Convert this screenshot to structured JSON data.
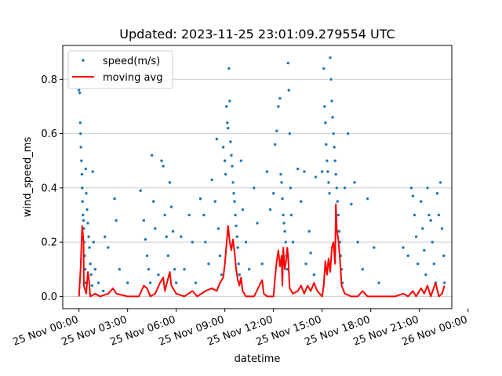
{
  "chart_data": {
    "type": "scatter",
    "title": "Updated: 2023-11-25 23:01:09.279554 UTC",
    "xlabel": "datetime",
    "ylabel": "wind_speed_ms",
    "x_unit": "hours since 25 Nov 00:00",
    "xlim": [
      -1.0,
      23.0
    ],
    "ylim": [
      -0.045,
      0.925
    ],
    "x_ticks": [
      {
        "value": 0,
        "label": "25 Nov 00:00"
      },
      {
        "value": 3,
        "label": "25 Nov 03:00"
      },
      {
        "value": 6,
        "label": "25 Nov 06:00"
      },
      {
        "value": 9,
        "label": "25 Nov 09:00"
      },
      {
        "value": 12,
        "label": "25 Nov 12:00"
      },
      {
        "value": 15,
        "label": "25 Nov 15:00"
      },
      {
        "value": 18,
        "label": "25 Nov 18:00"
      },
      {
        "value": 21,
        "label": "25 Nov 21:00"
      },
      {
        "value": 24,
        "label": "26 Nov 00:00"
      }
    ],
    "y_ticks": [
      {
        "value": 0.0,
        "label": "0.0"
      },
      {
        "value": 0.2,
        "label": "0.2"
      },
      {
        "value": 0.4,
        "label": "0.4"
      },
      {
        "value": 0.6,
        "label": "0.6"
      },
      {
        "value": 0.8,
        "label": "0.8"
      }
    ],
    "grid": "horizontal",
    "legend": {
      "placement": "top-left",
      "entries": [
        {
          "label": "speed(m/s)",
          "marker": "point",
          "color": "#1f77b4"
        },
        {
          "label": "moving avg",
          "marker": "line",
          "color": "#ff0000"
        }
      ]
    },
    "colors": {
      "scatter": "#1f77b4",
      "moving_avg": "#ff0000",
      "grid": "#cccccc"
    },
    "series": [
      {
        "name": "speed(m/s)",
        "kind": "scatter",
        "points": [
          [
            0.0,
            0.76
          ],
          [
            0.05,
            0.75
          ],
          [
            0.08,
            0.64
          ],
          [
            0.1,
            0.6
          ],
          [
            0.12,
            0.55
          ],
          [
            0.15,
            0.5
          ],
          [
            0.18,
            0.45
          ],
          [
            0.2,
            0.4
          ],
          [
            0.22,
            0.35
          ],
          [
            0.25,
            0.3
          ],
          [
            0.28,
            0.28
          ],
          [
            0.3,
            0.25
          ],
          [
            0.32,
            0.2
          ],
          [
            0.35,
            0.15
          ],
          [
            0.38,
            0.1
          ],
          [
            0.4,
            0.05
          ],
          [
            0.42,
            0.47
          ],
          [
            0.45,
            0.38
          ],
          [
            0.5,
            0.32
          ],
          [
            0.55,
            0.27
          ],
          [
            0.6,
            0.22
          ],
          [
            0.65,
            0.18
          ],
          [
            0.7,
            0.12
          ],
          [
            0.75,
            0.08
          ],
          [
            0.8,
            0.04
          ],
          [
            0.85,
            0.46
          ],
          [
            0.9,
            0.2
          ],
          [
            1.0,
            0.1
          ],
          [
            1.2,
            0.05
          ],
          [
            1.5,
            0.02
          ],
          [
            1.6,
            0.22
          ],
          [
            1.8,
            0.18
          ],
          [
            2.2,
            0.36
          ],
          [
            2.3,
            0.28
          ],
          [
            2.5,
            0.1
          ],
          [
            3.0,
            0.05
          ],
          [
            3.8,
            0.39
          ],
          [
            4.0,
            0.28
          ],
          [
            4.1,
            0.21
          ],
          [
            4.2,
            0.15
          ],
          [
            4.3,
            0.1
          ],
          [
            4.4,
            0.05
          ],
          [
            4.5,
            0.52
          ],
          [
            4.6,
            0.35
          ],
          [
            4.7,
            0.25
          ],
          [
            4.9,
            0.08
          ],
          [
            5.1,
            0.5
          ],
          [
            5.2,
            0.48
          ],
          [
            5.3,
            0.3
          ],
          [
            5.4,
            0.22
          ],
          [
            5.5,
            0.15
          ],
          [
            5.6,
            0.42
          ],
          [
            5.7,
            0.33
          ],
          [
            5.8,
            0.24
          ],
          [
            5.9,
            0.1
          ],
          [
            6.0,
            0.05
          ],
          [
            6.3,
            0.22
          ],
          [
            6.5,
            0.1
          ],
          [
            6.8,
            0.3
          ],
          [
            7.0,
            0.2
          ],
          [
            7.2,
            0.05
          ],
          [
            7.5,
            0.36
          ],
          [
            7.7,
            0.3
          ],
          [
            7.8,
            0.2
          ],
          [
            8.0,
            0.12
          ],
          [
            8.2,
            0.43
          ],
          [
            8.4,
            0.35
          ],
          [
            8.5,
            0.58
          ],
          [
            8.6,
            0.25
          ],
          [
            8.7,
            0.15
          ],
          [
            8.8,
            0.08
          ],
          [
            8.9,
            0.55
          ],
          [
            9.0,
            0.5
          ],
          [
            9.05,
            0.45
          ],
          [
            9.1,
            0.7
          ],
          [
            9.15,
            0.64
          ],
          [
            9.2,
            0.62
          ],
          [
            9.25,
            0.84
          ],
          [
            9.3,
            0.72
          ],
          [
            9.35,
            0.57
          ],
          [
            9.4,
            0.52
          ],
          [
            9.45,
            0.48
          ],
          [
            9.5,
            0.42
          ],
          [
            9.55,
            0.38
          ],
          [
            9.6,
            0.35
          ],
          [
            9.65,
            0.3
          ],
          [
            9.7,
            0.26
          ],
          [
            9.75,
            0.22
          ],
          [
            9.8,
            0.18
          ],
          [
            9.85,
            0.12
          ],
          [
            9.9,
            0.08
          ],
          [
            10.0,
            0.5
          ],
          [
            10.1,
            0.32
          ],
          [
            10.3,
            0.2
          ],
          [
            10.5,
            0.1
          ],
          [
            10.8,
            0.4
          ],
          [
            11.0,
            0.27
          ],
          [
            11.3,
            0.12
          ],
          [
            11.6,
            0.46
          ],
          [
            11.8,
            0.32
          ],
          [
            12.0,
            0.38
          ],
          [
            12.1,
            0.56
          ],
          [
            12.2,
            0.61
          ],
          [
            12.3,
            0.7
          ],
          [
            12.4,
            0.73
          ],
          [
            12.45,
            0.45
          ],
          [
            12.5,
            0.42
          ],
          [
            12.55,
            0.36
          ],
          [
            12.6,
            0.3
          ],
          [
            12.65,
            0.27
          ],
          [
            12.7,
            0.24
          ],
          [
            12.75,
            0.2
          ],
          [
            12.8,
            0.15
          ],
          [
            12.85,
            0.1
          ],
          [
            12.9,
            0.86
          ],
          [
            12.95,
            0.76
          ],
          [
            13.0,
            0.6
          ],
          [
            13.05,
            0.4
          ],
          [
            13.1,
            0.3
          ],
          [
            13.2,
            0.2
          ],
          [
            13.5,
            0.47
          ],
          [
            13.7,
            0.35
          ],
          [
            13.9,
            0.46
          ],
          [
            14.0,
            0.12
          ],
          [
            14.2,
            0.24
          ],
          [
            14.3,
            0.16
          ],
          [
            14.5,
            0.08
          ],
          [
            14.6,
            0.44
          ],
          [
            15.0,
            0.46
          ],
          [
            15.1,
            0.84
          ],
          [
            15.15,
            0.7
          ],
          [
            15.2,
            0.64
          ],
          [
            15.25,
            0.56
          ],
          [
            15.3,
            0.5
          ],
          [
            15.35,
            0.46
          ],
          [
            15.4,
            0.42
          ],
          [
            15.45,
            0.38
          ],
          [
            15.5,
            0.88
          ],
          [
            15.55,
            0.8
          ],
          [
            15.6,
            0.72
          ],
          [
            15.65,
            0.66
          ],
          [
            15.7,
            0.6
          ],
          [
            15.75,
            0.55
          ],
          [
            15.8,
            0.5
          ],
          [
            15.85,
            0.45
          ],
          [
            15.9,
            0.4
          ],
          [
            15.95,
            0.35
          ],
          [
            16.0,
            0.3
          ],
          [
            16.05,
            0.24
          ],
          [
            16.1,
            0.2
          ],
          [
            16.15,
            0.15
          ],
          [
            16.2,
            0.1
          ],
          [
            16.25,
            0.05
          ],
          [
            16.4,
            0.4
          ],
          [
            16.6,
            0.6
          ],
          [
            16.8,
            0.34
          ],
          [
            17.0,
            0.42
          ],
          [
            17.2,
            0.2
          ],
          [
            17.5,
            0.1
          ],
          [
            17.8,
            0.36
          ],
          [
            18.2,
            0.18
          ],
          [
            18.5,
            0.05
          ],
          [
            20.0,
            0.18
          ],
          [
            20.3,
            0.15
          ],
          [
            20.5,
            0.4
          ],
          [
            20.6,
            0.37
          ],
          [
            20.7,
            0.3
          ],
          [
            20.8,
            0.22
          ],
          [
            20.9,
            0.12
          ],
          [
            21.1,
            0.35
          ],
          [
            21.2,
            0.25
          ],
          [
            21.3,
            0.17
          ],
          [
            21.4,
            0.08
          ],
          [
            21.5,
            0.4
          ],
          [
            21.6,
            0.3
          ],
          [
            21.7,
            0.28
          ],
          [
            21.8,
            0.2
          ],
          [
            21.9,
            0.12
          ],
          [
            22.0,
            0.05
          ],
          [
            22.1,
            0.38
          ],
          [
            22.2,
            0.3
          ],
          [
            22.3,
            0.42
          ],
          [
            22.4,
            0.25
          ],
          [
            22.5,
            0.15
          ],
          [
            22.55,
            0.05
          ]
        ]
      },
      {
        "name": "moving avg",
        "kind": "line",
        "points": [
          [
            0.0,
            0.0
          ],
          [
            0.1,
            0.1
          ],
          [
            0.2,
            0.26
          ],
          [
            0.28,
            0.2
          ],
          [
            0.3,
            0.04
          ],
          [
            0.45,
            0.01
          ],
          [
            0.55,
            0.09
          ],
          [
            0.62,
            0.06
          ],
          [
            0.7,
            0.0
          ],
          [
            1.0,
            0.01
          ],
          [
            1.3,
            0.0
          ],
          [
            1.8,
            0.01
          ],
          [
            2.1,
            0.03
          ],
          [
            2.3,
            0.01
          ],
          [
            3.0,
            0.0
          ],
          [
            3.7,
            0.0
          ],
          [
            4.0,
            0.04
          ],
          [
            4.2,
            0.03
          ],
          [
            4.4,
            0.0
          ],
          [
            4.7,
            0.01
          ],
          [
            5.0,
            0.05
          ],
          [
            5.2,
            0.07
          ],
          [
            5.3,
            0.02
          ],
          [
            5.6,
            0.09
          ],
          [
            5.7,
            0.04
          ],
          [
            6.0,
            0.01
          ],
          [
            6.5,
            0.0
          ],
          [
            7.0,
            0.02
          ],
          [
            7.3,
            0.0
          ],
          [
            7.8,
            0.02
          ],
          [
            8.2,
            0.03
          ],
          [
            8.5,
            0.02
          ],
          [
            8.7,
            0.05
          ],
          [
            8.9,
            0.07
          ],
          [
            9.0,
            0.12
          ],
          [
            9.1,
            0.19
          ],
          [
            9.2,
            0.26
          ],
          [
            9.3,
            0.2
          ],
          [
            9.4,
            0.17
          ],
          [
            9.5,
            0.21
          ],
          [
            9.6,
            0.16
          ],
          [
            9.7,
            0.1
          ],
          [
            9.8,
            0.06
          ],
          [
            9.9,
            0.04
          ],
          [
            10.0,
            0.07
          ],
          [
            10.1,
            0.02
          ],
          [
            10.3,
            0.0
          ],
          [
            10.8,
            0.0
          ],
          [
            11.3,
            0.06
          ],
          [
            11.4,
            0.01
          ],
          [
            11.6,
            0.0
          ],
          [
            12.0,
            0.0
          ],
          [
            12.1,
            0.07
          ],
          [
            12.2,
            0.13
          ],
          [
            12.3,
            0.17
          ],
          [
            12.4,
            0.11
          ],
          [
            12.5,
            0.15
          ],
          [
            12.55,
            0.04
          ],
          [
            12.6,
            0.18
          ],
          [
            12.7,
            0.1
          ],
          [
            12.8,
            0.14
          ],
          [
            12.85,
            0.18
          ],
          [
            12.9,
            0.15
          ],
          [
            13.0,
            0.03
          ],
          [
            13.2,
            0.01
          ],
          [
            13.5,
            0.02
          ],
          [
            13.7,
            0.04
          ],
          [
            13.9,
            0.01
          ],
          [
            14.1,
            0.04
          ],
          [
            14.3,
            0.02
          ],
          [
            14.5,
            0.05
          ],
          [
            14.7,
            0.02
          ],
          [
            15.0,
            0.0
          ],
          [
            15.1,
            0.04
          ],
          [
            15.2,
            0.13
          ],
          [
            15.3,
            0.08
          ],
          [
            15.4,
            0.14
          ],
          [
            15.5,
            0.09
          ],
          [
            15.6,
            0.18
          ],
          [
            15.7,
            0.2
          ],
          [
            15.8,
            0.12
          ],
          [
            15.85,
            0.34
          ],
          [
            15.9,
            0.25
          ],
          [
            16.0,
            0.21
          ],
          [
            16.1,
            0.14
          ],
          [
            16.2,
            0.04
          ],
          [
            16.4,
            0.01
          ],
          [
            16.8,
            0.0
          ],
          [
            17.2,
            0.0
          ],
          [
            17.5,
            0.02
          ],
          [
            17.8,
            0.0
          ],
          [
            18.5,
            0.0
          ],
          [
            19.5,
            0.0
          ],
          [
            20.0,
            0.01
          ],
          [
            20.3,
            0.0
          ],
          [
            20.6,
            0.02
          ],
          [
            20.8,
            0.0
          ],
          [
            21.0,
            0.02
          ],
          [
            21.1,
            0.03
          ],
          [
            21.3,
            0.01
          ],
          [
            21.5,
            0.04
          ],
          [
            21.7,
            0.0
          ],
          [
            22.0,
            0.05
          ],
          [
            22.2,
            0.0
          ],
          [
            22.4,
            0.01
          ],
          [
            22.55,
            0.04
          ]
        ]
      }
    ]
  }
}
